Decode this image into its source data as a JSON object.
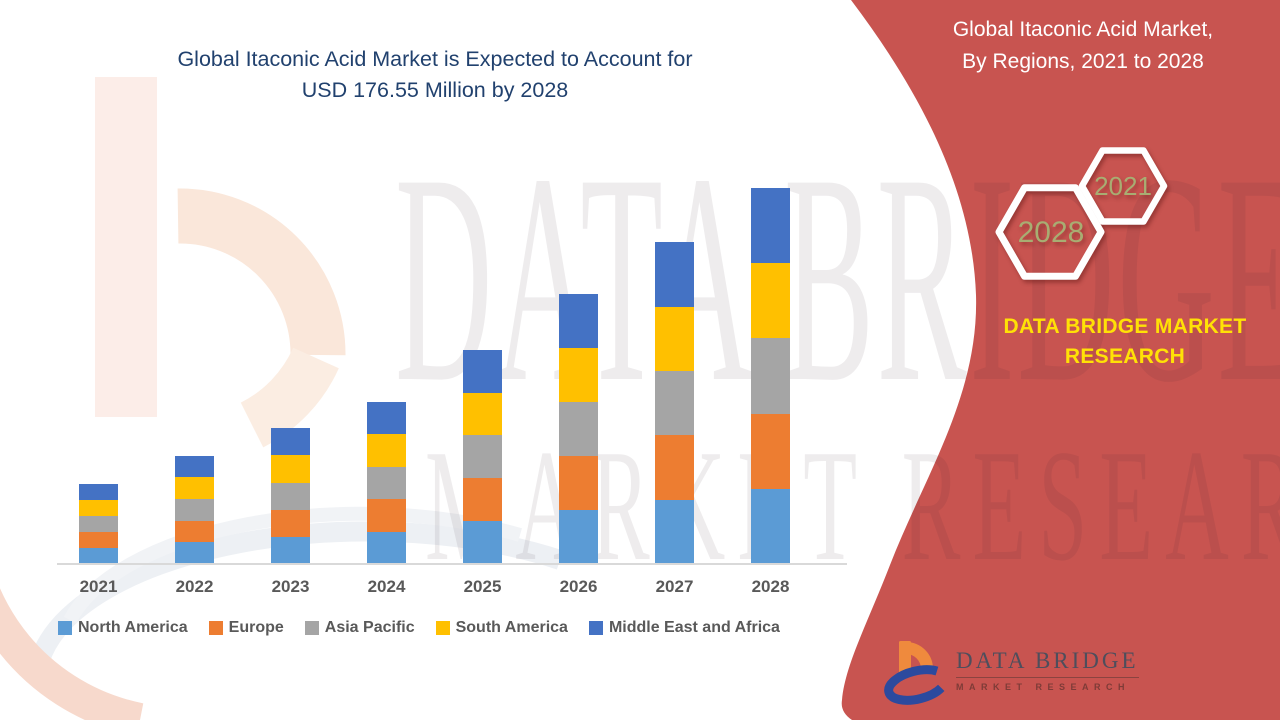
{
  "left_title": {
    "line1": "Global Itaconic Acid Market is Expected to Account for",
    "line2": "USD 176.55 Million by 2028"
  },
  "right_panel": {
    "bg_color": "#C85450",
    "title_line1": "Global Itaconic Acid Market,",
    "title_line2": "By Regions, 2021 to 2028",
    "hexagons": [
      {
        "label": "2021"
      },
      {
        "label": "2028"
      }
    ],
    "hex_text_color": "#A8AD72",
    "brand_line1": "DATA BRIDGE MARKET",
    "brand_line2": "RESEARCH",
    "brand_text_color": "#FFE106"
  },
  "footer_logo": {
    "name": "DATA BRIDGE",
    "subtitle": "MARKET RESEARCH"
  },
  "watermark": {
    "line1": "DATA BRIDGE",
    "line2": "MARKET RESEARCH"
  },
  "title_color": "#21416E",
  "chart_data": {
    "type": "bar",
    "stacked": true,
    "title": "Global Itaconic Acid Market, By Regions, 2021 to 2028",
    "unit": "USD Million",
    "categories": [
      "2021",
      "2022",
      "2023",
      "2024",
      "2025",
      "2026",
      "2027",
      "2028"
    ],
    "series": [
      {
        "name": "North America",
        "color": "#5B9BD5",
        "values": [
          7.52,
          10.18,
          12.76,
          15.22,
          20.14,
          25.32,
          30.22,
          35.31
        ]
      },
      {
        "name": "Europe",
        "color": "#ED7D31",
        "values": [
          7.52,
          10.18,
          12.76,
          15.22,
          20.14,
          25.32,
          30.22,
          35.31
        ]
      },
      {
        "name": "Asia Pacific",
        "color": "#A5A5A5",
        "values": [
          7.52,
          10.18,
          12.76,
          15.22,
          20.14,
          25.32,
          30.22,
          35.31
        ]
      },
      {
        "name": "South America",
        "color": "#FFC000",
        "values": [
          7.52,
          10.18,
          12.76,
          15.22,
          20.14,
          25.32,
          30.22,
          35.31
        ]
      },
      {
        "name": "Middle East and Africa",
        "color": "#4472C4",
        "values": [
          7.52,
          10.18,
          12.76,
          15.22,
          20.14,
          25.32,
          30.22,
          35.31
        ]
      }
    ],
    "totals": [
      37.6,
      50.9,
      63.8,
      76.1,
      100.7,
      126.6,
      151.1,
      176.55
    ],
    "xlabel": "",
    "ylabel": "",
    "y_axis_visible": false,
    "grid": false,
    "legend_position": "bottom"
  }
}
